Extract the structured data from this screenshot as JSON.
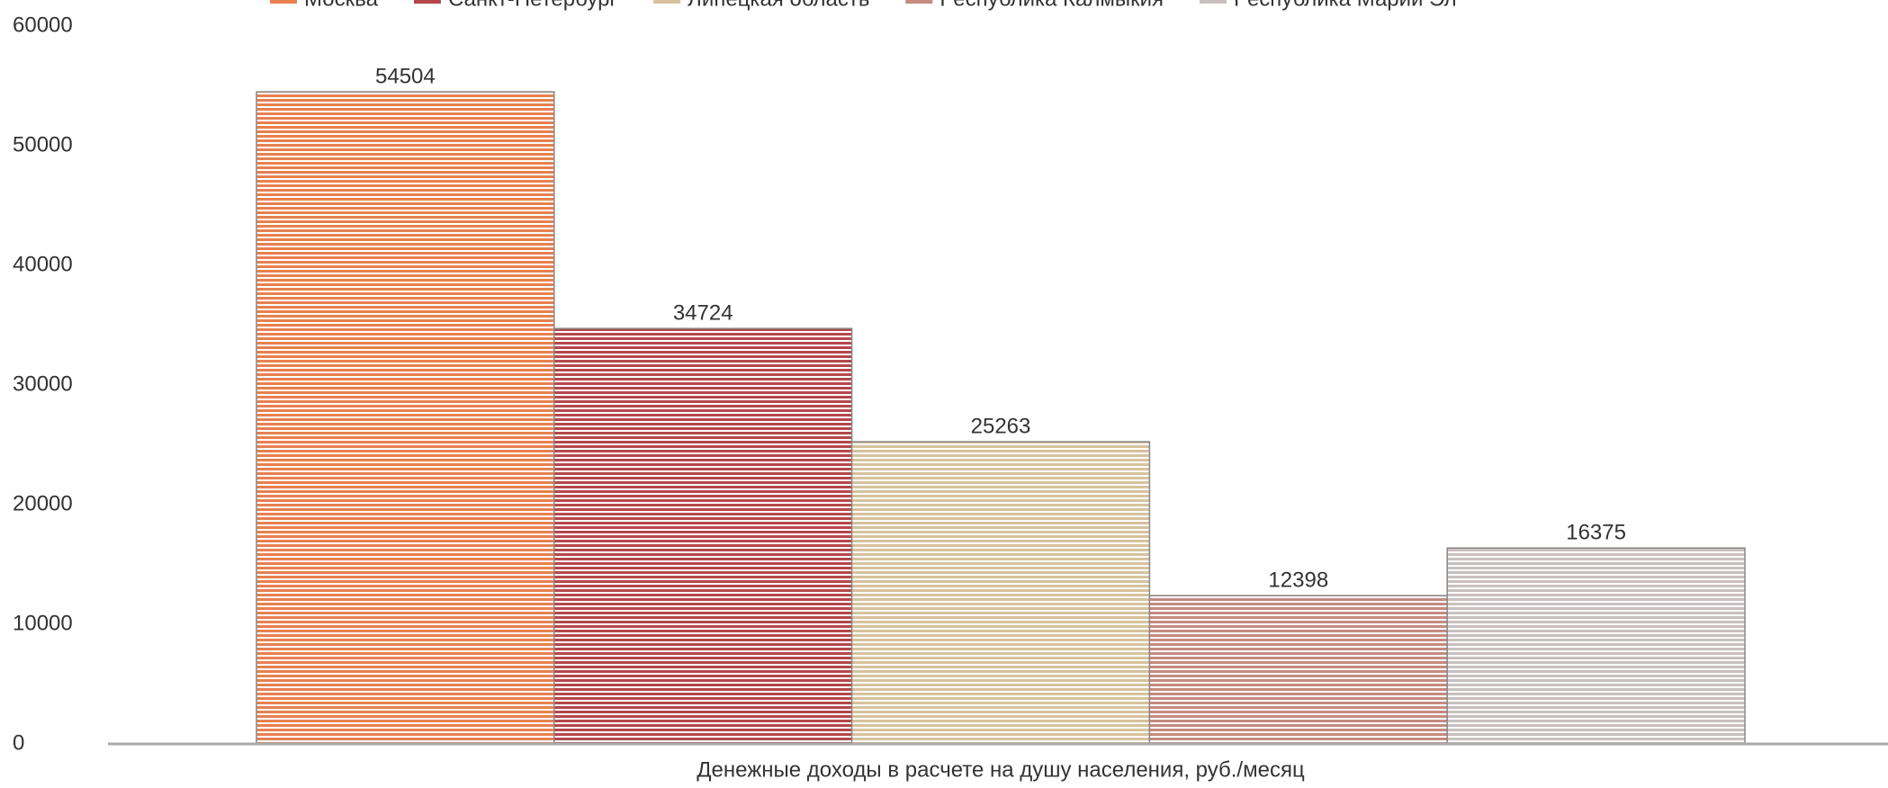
{
  "chart_data": {
    "type": "bar",
    "categories": [
      "Денежные доходы в расчете на душу населения, руб./месяц"
    ],
    "series": [
      {
        "name": "Москва",
        "color": "#e8804f",
        "values": [
          54504
        ]
      },
      {
        "name": "Санкт-Петербург",
        "color": "#b5474b",
        "values": [
          34724
        ]
      },
      {
        "name": "Липецкая область",
        "color": "#d6c29c",
        "values": [
          25263
        ]
      },
      {
        "name": "Республика Калмыкия",
        "color": "#c58a80",
        "values": [
          12398
        ]
      },
      {
        "name": "Республика Марий Эл",
        "color": "#c9c0c0",
        "values": [
          16375
        ]
      }
    ],
    "ylim": [
      0,
      60000
    ],
    "yticks": [
      0,
      10000,
      20000,
      30000,
      40000,
      50000,
      60000
    ],
    "grid": false,
    "legend": "top"
  }
}
